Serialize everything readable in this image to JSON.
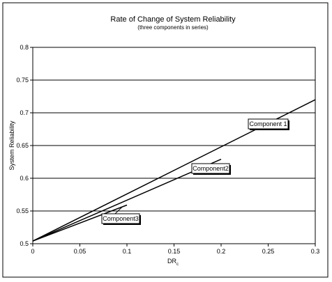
{
  "chart_data": {
    "type": "line",
    "title": "Rate of Change of System Reliability",
    "subtitle": "(three components in series)",
    "xlabel": "DR",
    "xlabel_subscript": "c",
    "ylabel": "System Reliability",
    "xlim": [
      0,
      0.3
    ],
    "ylim": [
      0.5,
      0.8
    ],
    "x_ticks": [
      "0",
      "0.05",
      "0.1",
      "0.15",
      "0.2",
      "0.25",
      "0.3"
    ],
    "y_ticks": [
      "0.5",
      "0.55",
      "0.6",
      "0.65",
      "0.7",
      "0.75",
      "0.8"
    ],
    "grid": "horizontal",
    "series": [
      {
        "name": "Component 1",
        "x": [
          0,
          0.3
        ],
        "y": [
          0.504,
          0.72
        ]
      },
      {
        "name": "Component2",
        "x": [
          0,
          0.2
        ],
        "y": [
          0.504,
          0.629
        ]
      },
      {
        "name": "Component3",
        "x": [
          0,
          0.1
        ],
        "y": [
          0.504,
          0.559
        ]
      }
    ],
    "callouts": [
      {
        "text": "Component 1",
        "series": 0
      },
      {
        "text": "Component2",
        "series": 1
      },
      {
        "text": "Component3",
        "series": 2
      }
    ],
    "colors": {
      "line": "#000000",
      "grid": "#000000",
      "background": "#ffffff"
    }
  }
}
